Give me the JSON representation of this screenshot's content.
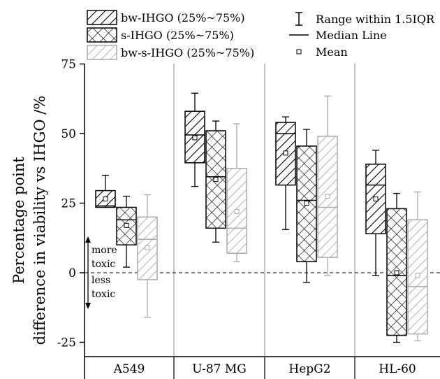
{
  "chart_data": {
    "type": "boxplot",
    "title": "",
    "ylabel": "Percentage point difference in viability vs IHGO /%",
    "ylabel_lines": [
      "Percentage point",
      "difference in viability vs IHGO /%"
    ],
    "ylim": [
      -30,
      75
    ],
    "yticks": [
      -25,
      0,
      25,
      50,
      75
    ],
    "ytick_labels": [
      "-25",
      "0",
      "25",
      "50",
      "75"
    ],
    "zero_line": "dashed",
    "categories": [
      "A549",
      "U-87 MG",
      "HepG2",
      "HL-60"
    ],
    "legend": {
      "placement": "top",
      "series_entries": [
        "bw-IHGO (25%~75%)",
        "s-IHGO (25%~75%)",
        "bw-s-IHGO (25%~75%)"
      ],
      "range_label": "Range within 1.5IQR",
      "median_label": "Median Line",
      "mean_label": "Mean"
    },
    "annotations": {
      "up": "more\ntoxic",
      "down": "less\ntoxic",
      "up_lines": [
        "more",
        "toxic"
      ],
      "down_lines": [
        "less",
        "toxic"
      ]
    },
    "series": [
      {
        "name": "bw-IHGO",
        "color": "#000000",
        "pattern": "diagonal-hatch",
        "boxes": [
          {
            "whisker_low": 23.5,
            "q1": 23.5,
            "median": 24,
            "q3": 29.5,
            "whisker_high": 35,
            "mean": 26.5
          },
          {
            "whisker_low": 31,
            "q1": 39.5,
            "median": 49.5,
            "q3": 58,
            "whisker_high": 64.5,
            "mean": 48.5
          },
          {
            "whisker_low": 15.5,
            "q1": 31.5,
            "median": 50,
            "q3": 54,
            "whisker_high": 56,
            "mean": 43
          },
          {
            "whisker_low": -1,
            "q1": 14,
            "median": 31.5,
            "q3": 39,
            "whisker_high": 44,
            "mean": 26.5
          }
        ]
      },
      {
        "name": "s-IHGO",
        "color": "#000000",
        "pattern": "cross-hatch",
        "boxes": [
          {
            "whisker_low": 2,
            "q1": 10,
            "median": 19,
            "q3": 23.5,
            "whisker_high": 27.5,
            "mean": 17
          },
          {
            "whisker_low": 11,
            "q1": 16,
            "median": 34.5,
            "q3": 51,
            "whisker_high": 54.5,
            "mean": 33.5
          },
          {
            "whisker_low": -3.5,
            "q1": 4,
            "median": 26,
            "q3": 45.5,
            "whisker_high": 51.5,
            "mean": 25
          },
          {
            "whisker_low": -25,
            "q1": -22.5,
            "median": -1,
            "q3": 23,
            "whisker_high": 28.5,
            "mean": 0
          }
        ]
      },
      {
        "name": "bw-s-IHGO",
        "color": "#aaaaaa",
        "pattern": "diagonal-hatch-light",
        "boxes": [
          {
            "whisker_low": -16,
            "q1": -2.5,
            "median": 12,
            "q3": 20,
            "whisker_high": 28,
            "mean": 9
          },
          {
            "whisker_low": 4,
            "q1": 7,
            "median": 16,
            "q3": 37.5,
            "whisker_high": 53.5,
            "mean": 22
          },
          {
            "whisker_low": -1,
            "q1": 5.5,
            "median": 23.5,
            "q3": 49,
            "whisker_high": 63.5,
            "mean": 27.5
          },
          {
            "whisker_low": -24.5,
            "q1": -22,
            "median": -5,
            "q3": 19,
            "whisker_high": 29,
            "mean": -1
          }
        ]
      }
    ]
  }
}
